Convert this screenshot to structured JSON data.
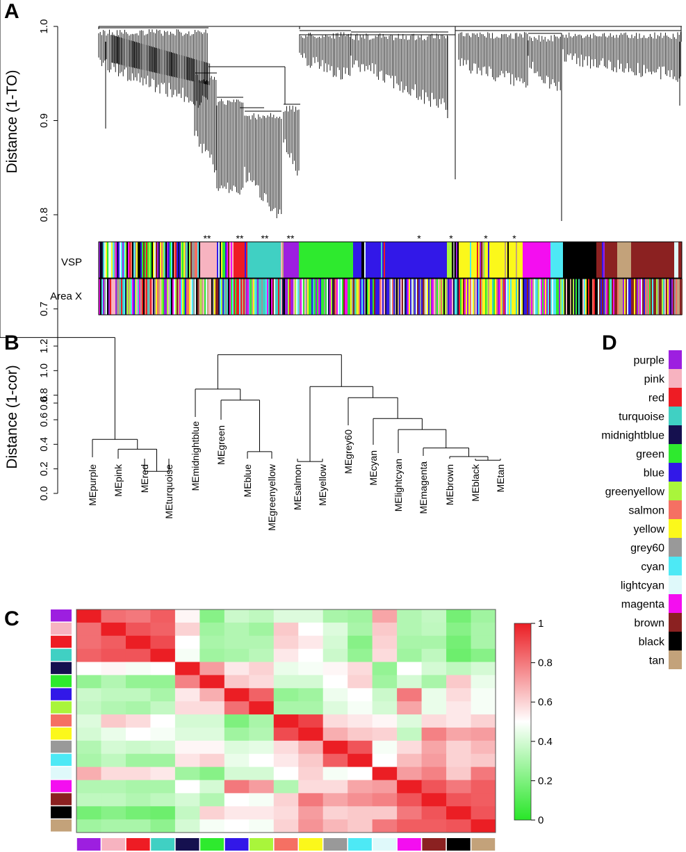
{
  "panels": {
    "a": "A",
    "b": "B",
    "c": "C",
    "d": "D"
  },
  "colors": {
    "purple": "#9d1fe0",
    "pink": "#f7b3c0",
    "red": "#ee1c24",
    "turquoise": "#40d0c3",
    "midnightblue": "#15104f",
    "green": "#2eea2e",
    "blue": "#3218e8",
    "greenyellow": "#a9f53b",
    "salmon": "#f57063",
    "yellow": "#fbf81b",
    "grey60": "#999999",
    "cyan": "#4de9f5",
    "lightcyan": "#dff9fa",
    "magenta": "#f40ef0",
    "brown": "#8b2121",
    "black": "#000000",
    "tan": "#c3a27a"
  },
  "panel_a": {
    "ylabel": "Distance (1-TO)",
    "yticks": [
      "0.6",
      "0.7",
      "0.8",
      "0.9",
      "1.0"
    ],
    "ylim": [
      0.57,
      1.0
    ],
    "tracks": [
      "VSP",
      "Area X"
    ],
    "stars": [
      {
        "module": "pink",
        "mark": "**"
      },
      {
        "module": "red",
        "mark": "**"
      },
      {
        "module": "turquoise",
        "mark": "**"
      },
      {
        "module": "purple",
        "mark": "**"
      },
      {
        "module": "blue",
        "mark": "*"
      },
      {
        "module": "greenyellow",
        "mark": "*"
      },
      {
        "module": "yellow",
        "mark": "*"
      },
      {
        "module": "yellow",
        "mark": "*"
      }
    ]
  },
  "chart_data": [
    {
      "type": "dendrogram",
      "ylabel": "Distance (1-cor)",
      "ylim": [
        0.0,
        1.3
      ],
      "yticks": [
        "0.0",
        "0.2",
        "0.4",
        "0.6",
        "0.8",
        "1.0",
        "1.2"
      ],
      "leaves": [
        "MEpurple",
        "MEpink",
        "MEred",
        "MEturquoise",
        "MEmidnightblue",
        "MEgreen",
        "MEblue",
        "MEgreenyellow",
        "MEsalmon",
        "MEyellow",
        "MEgrey60",
        "MEcyan",
        "MElightcyan",
        "MEmagenta",
        "MEbrown",
        "MEblack",
        "MEtan"
      ],
      "merges": [
        {
          "a": "MEred",
          "b": "MEturquoise",
          "height": 0.18
        },
        {
          "a": "MEpink",
          "b": "MEred+MEturquoise",
          "height": 0.36
        },
        {
          "a": "MEpurple",
          "b": "MEpink+MEred+MEturquoise",
          "height": 0.44
        },
        {
          "a": "MEblue",
          "b": "MEgreenyellow",
          "height": 0.34
        },
        {
          "a": "MEgreen",
          "b": "MEblue+MEgreenyellow",
          "height": 0.76
        },
        {
          "a": "MEmidnightblue",
          "b": "MEgreen+MEblue+MEgreenyellow",
          "height": 0.85
        },
        {
          "a": "MEsalmon",
          "b": "MEyellow",
          "height": 0.26
        },
        {
          "a": "MEtan",
          "b": "MEblack",
          "height": 0.27
        },
        {
          "a": "MEblack+MEtan",
          "b": "MEbrown",
          "height": 0.3
        },
        {
          "a": "MEmagenta",
          "b": "MEbrown+MEblack+MEtan",
          "height": 0.37
        },
        {
          "a": "MElightcyan",
          "b": "MEmagenta+MEbrown+MEblack+MEtan",
          "height": 0.52
        },
        {
          "a": "MEcyan",
          "b": "MElightcyan+MEmagenta+MEbrown+MEblack+MEtan",
          "height": 0.61
        },
        {
          "a": "MEgrey60",
          "b": "MEcyan+MElightcyan+MEmagenta+MEbrown+MEblack+MEtan",
          "height": 0.78
        },
        {
          "a": "MEsalmon+MEyellow",
          "b": "MEgrey60+MEcyan+MElightcyan+MEmagenta+MEbrown+MEblack+MEtan",
          "height": 0.87
        },
        {
          "a": "left-cluster-green",
          "b": "right-cluster-yellow",
          "height": 1.13
        },
        {
          "a": "cluster-purple",
          "b": "cluster-green-yellow",
          "height": 1.27
        }
      ]
    },
    {
      "type": "heatmap",
      "modules": [
        "purple",
        "pink",
        "red",
        "turquoise",
        "midnightblue",
        "green",
        "blue",
        "greenyellow",
        "salmon",
        "yellow",
        "grey60",
        "cyan",
        "lightcyan",
        "magenta",
        "brown",
        "black",
        "tan"
      ],
      "colorbar": {
        "range": [
          0,
          1
        ],
        "ticks": [
          "0",
          "0.2",
          "0.4",
          "0.6",
          "0.8",
          "1"
        ]
      },
      "values": [
        [
          1.0,
          0.82,
          0.8,
          0.86,
          0.52,
          0.22,
          0.38,
          0.35,
          0.42,
          0.42,
          0.3,
          0.28,
          0.7,
          0.32,
          0.36,
          0.18,
          0.28
        ],
        [
          0.82,
          1.0,
          0.88,
          0.85,
          0.6,
          0.28,
          0.32,
          0.28,
          0.62,
          0.5,
          0.42,
          0.3,
          0.62,
          0.32,
          0.35,
          0.22,
          0.3
        ],
        [
          0.82,
          0.86,
          1.0,
          0.9,
          0.5,
          0.3,
          0.32,
          0.32,
          0.6,
          0.55,
          0.4,
          0.22,
          0.6,
          0.3,
          0.3,
          0.18,
          0.3
        ],
        [
          0.85,
          0.88,
          0.88,
          1.0,
          0.48,
          0.28,
          0.3,
          0.34,
          0.55,
          0.5,
          0.38,
          0.25,
          0.58,
          0.28,
          0.35,
          0.16,
          0.22
        ],
        [
          0.5,
          0.52,
          0.48,
          0.5,
          1.0,
          0.72,
          0.55,
          0.6,
          0.45,
          0.48,
          0.52,
          0.58,
          0.25,
          0.5,
          0.4,
          0.35,
          0.4
        ],
        [
          0.25,
          0.32,
          0.25,
          0.25,
          0.78,
          1.0,
          0.62,
          0.58,
          0.4,
          0.4,
          0.5,
          0.6,
          0.28,
          0.4,
          0.3,
          0.62,
          0.45
        ],
        [
          0.38,
          0.35,
          0.35,
          0.3,
          0.55,
          0.68,
          1.0,
          0.85,
          0.25,
          0.28,
          0.46,
          0.5,
          0.38,
          0.8,
          0.45,
          0.58,
          0.48
        ],
        [
          0.36,
          0.32,
          0.3,
          0.36,
          0.58,
          0.58,
          0.82,
          1.0,
          0.3,
          0.3,
          0.42,
          0.48,
          0.4,
          0.7,
          0.45,
          0.55,
          0.48
        ],
        [
          0.42,
          0.62,
          0.58,
          0.5,
          0.4,
          0.4,
          0.2,
          0.3,
          1.0,
          0.92,
          0.58,
          0.55,
          0.52,
          0.42,
          0.58,
          0.55,
          0.6
        ],
        [
          0.4,
          0.45,
          0.5,
          0.48,
          0.42,
          0.42,
          0.28,
          0.32,
          0.9,
          1.0,
          0.68,
          0.62,
          0.6,
          0.36,
          0.78,
          0.7,
          0.72
        ],
        [
          0.32,
          0.4,
          0.38,
          0.4,
          0.52,
          0.52,
          0.42,
          0.44,
          0.58,
          0.68,
          1.0,
          0.88,
          0.48,
          0.58,
          0.7,
          0.6,
          0.66
        ],
        [
          0.3,
          0.35,
          0.28,
          0.28,
          0.56,
          0.6,
          0.45,
          0.5,
          0.55,
          0.62,
          0.86,
          1.0,
          0.5,
          0.65,
          0.72,
          0.6,
          0.62
        ],
        [
          0.68,
          0.58,
          0.58,
          0.55,
          0.28,
          0.22,
          0.4,
          0.4,
          0.5,
          0.6,
          0.48,
          0.5,
          1.0,
          0.72,
          0.78,
          0.62,
          0.8
        ],
        [
          0.32,
          0.32,
          0.3,
          0.3,
          0.5,
          0.4,
          0.8,
          0.72,
          0.32,
          0.58,
          0.58,
          0.7,
          0.72,
          1.0,
          0.88,
          0.8,
          0.86
        ],
        [
          0.35,
          0.35,
          0.32,
          0.35,
          0.4,
          0.32,
          0.5,
          0.48,
          0.6,
          0.8,
          0.7,
          0.75,
          0.78,
          0.88,
          1.0,
          0.88,
          0.86
        ],
        [
          0.18,
          0.22,
          0.18,
          0.16,
          0.36,
          0.6,
          0.55,
          0.55,
          0.58,
          0.72,
          0.6,
          0.62,
          0.62,
          0.8,
          0.88,
          1.0,
          0.88
        ],
        [
          0.28,
          0.3,
          0.3,
          0.24,
          0.4,
          0.48,
          0.5,
          0.48,
          0.6,
          0.74,
          0.66,
          0.62,
          0.8,
          0.86,
          0.86,
          0.88,
          1.0
        ]
      ]
    }
  ],
  "panel_d": {
    "legend": [
      "purple",
      "pink",
      "red",
      "turquoise",
      "midnightblue",
      "green",
      "blue",
      "greenyellow",
      "salmon",
      "yellow",
      "grey60",
      "cyan",
      "lightcyan",
      "magenta",
      "brown",
      "black",
      "tan"
    ]
  }
}
